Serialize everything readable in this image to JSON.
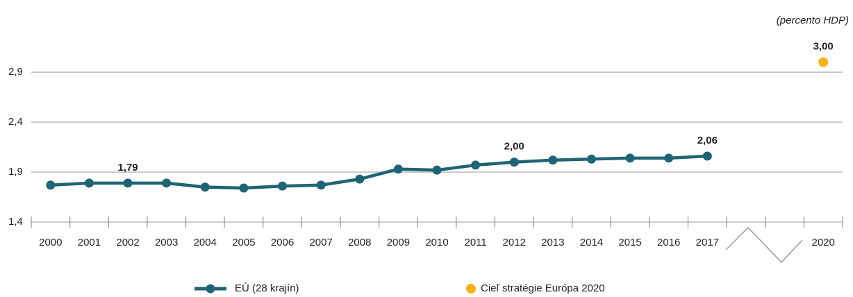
{
  "chart_data": {
    "type": "line",
    "subtitle": "(percento HDP)",
    "categories": [
      "2000",
      "2001",
      "2002",
      "2003",
      "2004",
      "2005",
      "2006",
      "2007",
      "2008",
      "2009",
      "2010",
      "2011",
      "2012",
      "2013",
      "2014",
      "2015",
      "2016",
      "2017",
      null,
      null,
      "2020"
    ],
    "series": [
      {
        "name": "EÚ (28 krajín)",
        "type": "line",
        "color": "#1f6475",
        "values": [
          1.77,
          1.79,
          1.79,
          1.79,
          1.75,
          1.74,
          1.76,
          1.77,
          1.83,
          1.93,
          1.92,
          1.97,
          2.0,
          2.02,
          2.03,
          2.04,
          2.04,
          2.06,
          null,
          null,
          null
        ],
        "value_labels": [
          null,
          null,
          "1,79",
          null,
          null,
          null,
          null,
          null,
          null,
          null,
          null,
          null,
          "2,00",
          null,
          null,
          null,
          null,
          "2,06",
          null,
          null,
          null
        ]
      },
      {
        "name": "Cieľ stratégie Európa 2020",
        "type": "scatter",
        "color": "#f5b21c",
        "values": [
          null,
          null,
          null,
          null,
          null,
          null,
          null,
          null,
          null,
          null,
          null,
          null,
          null,
          null,
          null,
          null,
          null,
          null,
          null,
          null,
          3.0
        ],
        "value_labels": [
          null,
          null,
          null,
          null,
          null,
          null,
          null,
          null,
          null,
          null,
          null,
          null,
          null,
          null,
          null,
          null,
          null,
          null,
          null,
          null,
          "3,00"
        ]
      }
    ],
    "ylim": [
      1.4,
      3.0
    ],
    "yticks": [
      {
        "value": 1.4,
        "label": "1,4"
      },
      {
        "value": 1.9,
        "label": "1,9"
      },
      {
        "value": 2.4,
        "label": "2,4"
      },
      {
        "value": 2.9,
        "label": "2,9"
      }
    ],
    "grid": true
  }
}
